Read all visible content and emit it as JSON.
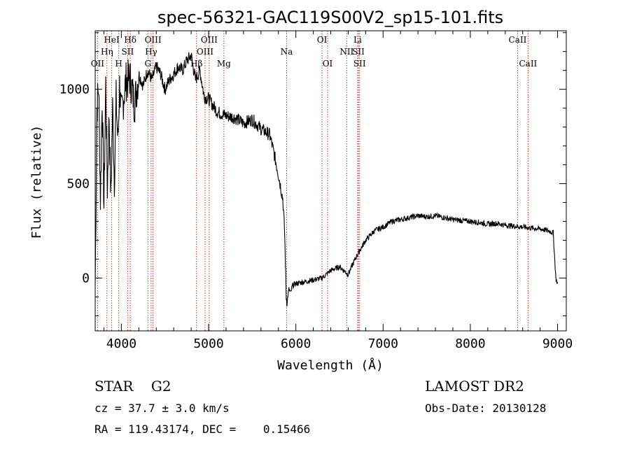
{
  "chart_data": {
    "type": "line",
    "title": "spec-56321-GAC119S00V2_sp15-101.fits",
    "xlabel": "Wavelength (Å)",
    "ylabel": "Flux (relative)",
    "xlim": [
      3700,
      9100
    ],
    "ylim": [
      -280,
      1310
    ],
    "x_ticks": [
      4000,
      5000,
      6000,
      7000,
      8000,
      9000
    ],
    "y_ticks": [
      0,
      500,
      1000
    ],
    "grid": false,
    "series": [
      {
        "x": [
          3700,
          3720,
          3740,
          3760,
          3780,
          3800,
          3820,
          3840,
          3860,
          3880,
          3900,
          3920,
          3940,
          3960,
          3980,
          4000,
          4050,
          4100,
          4150,
          4200,
          4250,
          4300,
          4350,
          4400,
          4450,
          4500,
          4550,
          4600,
          4650,
          4700,
          4750,
          4800,
          4850,
          4900,
          4950,
          5000,
          5100,
          5200,
          5300,
          5400,
          5500,
          5600,
          5700,
          5750,
          5800,
          5850,
          5870,
          5880,
          5890,
          5900,
          5910,
          5920,
          5940,
          5960,
          6000,
          6100,
          6200,
          6300,
          6400,
          6500,
          6600,
          6700,
          6800,
          6900,
          7000,
          7100,
          7200,
          7300,
          7400,
          7500,
          7600,
          7700,
          7800,
          7900,
          8000,
          8100,
          8200,
          8300,
          8400,
          8500,
          8600,
          8700,
          8800,
          8900,
          8950,
          8980,
          9000
        ],
        "y": [
          -40,
          900,
          1020,
          420,
          960,
          380,
          1030,
          480,
          870,
          420,
          900,
          520,
          950,
          720,
          1020,
          860,
          1040,
          1060,
          920,
          1080,
          1020,
          1100,
          1050,
          1120,
          1080,
          1000,
          1050,
          1080,
          1120,
          1100,
          1150,
          1180,
          1050,
          1100,
          960,
          950,
          880,
          860,
          850,
          820,
          840,
          790,
          760,
          660,
          550,
          420,
          260,
          80,
          -100,
          -130,
          -90,
          -60,
          -80,
          -40,
          -30,
          -20,
          -10,
          0,
          40,
          60,
          20,
          120,
          200,
          250,
          270,
          300,
          310,
          320,
          330,
          325,
          330,
          320,
          310,
          305,
          300,
          295,
          285,
          290,
          280,
          275,
          270,
          265,
          260,
          250,
          240,
          0,
          -30
        ]
      }
    ],
    "spectral_lines": [
      {
        "label": "OII",
        "x": 3727,
        "row": 3
      },
      {
        "label": "Hη",
        "x": 3835,
        "row": 2
      },
      {
        "label": "HeI",
        "x": 3889,
        "row": 1
      },
      {
        "label": "H",
        "x": 3970,
        "row": 3
      },
      {
        "label": "SII",
        "x": 4072,
        "row": 2
      },
      {
        "label": "Hδ",
        "x": 4102,
        "row": 1
      },
      {
        "label": "G",
        "x": 4304,
        "row": 3
      },
      {
        "label": "Hγ",
        "x": 4341,
        "row": 2
      },
      {
        "label": "OIII",
        "x": 4363,
        "row": 1
      },
      {
        "label": "Hβ",
        "x": 4861,
        "row": 3
      },
      {
        "label": "OIII",
        "x": 4959,
        "row": 2
      },
      {
        "label": "OIII",
        "x": 5007,
        "row": 1
      },
      {
        "label": "Mg",
        "x": 5175,
        "row": 3
      },
      {
        "label": "Na",
        "x": 5894,
        "row": 2
      },
      {
        "label": "OI",
        "x": 6300,
        "row": 1
      },
      {
        "label": "OI",
        "x": 6364,
        "row": 3
      },
      {
        "label": "NII",
        "x": 6583,
        "row": 2
      },
      {
        "label": "Li",
        "x": 6708,
        "row": 1
      },
      {
        "label": "SII",
        "x": 6717,
        "row": 2
      },
      {
        "label": "SII",
        "x": 6731,
        "row": 3
      },
      {
        "label": "CaII",
        "x": 8542,
        "row": 1
      },
      {
        "label": "CaII",
        "x": 8662,
        "row": 3
      }
    ],
    "line_color": "#000000",
    "marker_color": "#c0392b"
  },
  "info": {
    "class": "STAR    G2",
    "survey": "LAMOST DR2",
    "cz": "cz = 37.7 ± 3.0 km/s",
    "obs_date": "Obs-Date: 20130128",
    "coords": "RA = 119.43174, DEC =    0.15466"
  }
}
